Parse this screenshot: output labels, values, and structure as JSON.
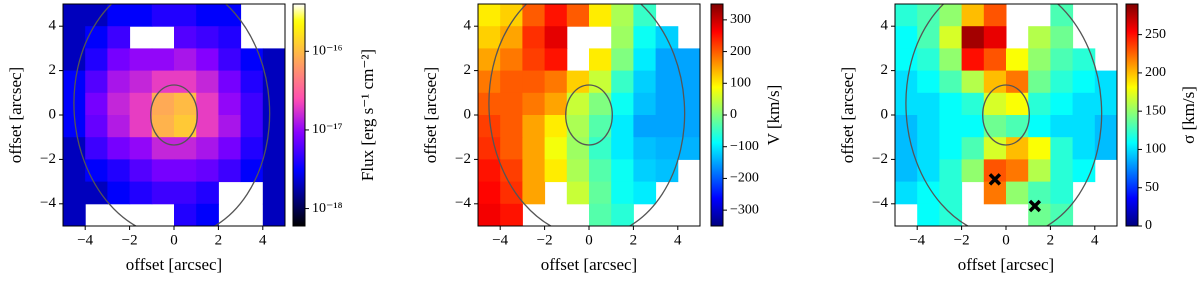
{
  "chart_data": [
    {
      "type": "heatmap",
      "xlabel": "offset [arcsec]",
      "ylabel": "offset [arcsec]",
      "xlim": [
        -5,
        5
      ],
      "ylim": [
        -5,
        5
      ],
      "xticks": [
        {
          "value": -4,
          "label": "−4"
        },
        {
          "value": -2,
          "label": "−2"
        },
        0,
        2,
        4
      ],
      "yticks": [
        {
          "value": -4,
          "label": "−4"
        },
        {
          "value": -2,
          "label": "−2"
        },
        0,
        2,
        4
      ],
      "x": [
        -4.5,
        -3.5,
        -2.5,
        -1.5,
        -0.5,
        0.5,
        1.5,
        2.5,
        3.5,
        4.5
      ],
      "y": [
        4.5,
        3.5,
        2.5,
        1.5,
        0.5,
        -0.5,
        -1.5,
        -2.5,
        -3.5,
        -4.5
      ],
      "values": [
        [
          2e-18,
          2e-18,
          3e-18,
          3e-18,
          4e-18,
          4e-18,
          3e-18,
          3e-18,
          null,
          null
        ],
        [
          2e-18,
          3e-18,
          5e-18,
          null,
          null,
          6e-18,
          5e-18,
          4e-18,
          null,
          null
        ],
        [
          2e-18,
          4e-18,
          8e-18,
          1e-17,
          1e-17,
          1.2e-17,
          9e-18,
          5e-18,
          3e-18,
          2e-18
        ],
        [
          3e-18,
          6e-18,
          1.2e-17,
          1.5e-17,
          2e-17,
          2e-17,
          1.5e-17,
          8e-18,
          4e-18,
          2e-18
        ],
        [
          3e-18,
          8e-18,
          1.5e-17,
          2e-17,
          8e-17,
          1e-16,
          2e-17,
          1e-17,
          5e-18,
          2e-18
        ],
        [
          3e-18,
          7e-18,
          1.3e-17,
          2e-17,
          9e-17,
          1.2e-16,
          2e-17,
          1.2e-17,
          5e-18,
          2e-18
        ],
        [
          2e-18,
          5e-18,
          8e-18,
          1e-17,
          1.5e-17,
          1.5e-17,
          1.2e-17,
          8e-18,
          4e-18,
          2e-18
        ],
        [
          2e-18,
          3e-18,
          4e-18,
          6e-18,
          8e-18,
          8e-18,
          7e-18,
          5e-18,
          3e-18,
          2e-18
        ],
        [
          2e-18,
          2e-18,
          3e-18,
          4e-18,
          5e-18,
          5e-18,
          4e-18,
          null,
          null,
          2e-18
        ],
        [
          2e-18,
          null,
          null,
          null,
          null,
          4e-18,
          3e-18,
          null,
          null,
          2e-18
        ]
      ],
      "colorbar": {
        "label": "Flux [erg s⁻¹ cm⁻²]",
        "scale": "log",
        "colormap": "gnuplot2",
        "lim": [
          6e-19,
          4e-16
        ],
        "ticks": [
          {
            "value": 1e-18,
            "label": "10⁻¹⁸"
          },
          {
            "value": 1e-17,
            "label": "10⁻¹⁷"
          },
          {
            "value": 1e-16,
            "label": "10⁻¹⁶"
          }
        ]
      }
    },
    {
      "type": "heatmap",
      "xlabel": "offset [arcsec]",
      "ylabel": "offset [arcsec]",
      "xlim": [
        -5,
        5
      ],
      "ylim": [
        -5,
        5
      ],
      "xticks": [
        {
          "value": -4,
          "label": "−4"
        },
        {
          "value": -2,
          "label": "−2"
        },
        0,
        2,
        4
      ],
      "yticks": [
        {
          "value": -4,
          "label": "−4"
        },
        {
          "value": -2,
          "label": "−2"
        },
        0,
        2,
        4
      ],
      "x": [
        -4.5,
        -3.5,
        -2.5,
        -1.5,
        -0.5,
        0.5,
        1.5,
        2.5,
        3.5,
        4.5
      ],
      "y": [
        4.5,
        3.5,
        2.5,
        1.5,
        0.5,
        -0.5,
        -1.5,
        -2.5,
        -3.5,
        -4.5
      ],
      "values": [
        [
          100,
          120,
          200,
          250,
          200,
          100,
          30,
          -50,
          null,
          null
        ],
        [
          120,
          150,
          230,
          280,
          null,
          null,
          20,
          -80,
          -120,
          null
        ],
        [
          150,
          180,
          220,
          250,
          null,
          100,
          0,
          -100,
          -150,
          -150
        ],
        [
          180,
          200,
          200,
          180,
          120,
          50,
          -50,
          -120,
          -150,
          -150
        ],
        [
          200,
          200,
          180,
          150,
          50,
          0,
          -80,
          -130,
          -150,
          -150
        ],
        [
          220,
          200,
          150,
          100,
          30,
          -30,
          -100,
          -150,
          -150,
          -150
        ],
        [
          230,
          200,
          150,
          80,
          20,
          -50,
          -100,
          -130,
          -140,
          -140
        ],
        [
          250,
          220,
          150,
          100,
          30,
          -30,
          -80,
          -120,
          -130,
          null
        ],
        [
          260,
          230,
          150,
          null,
          50,
          -20,
          -80,
          -100,
          null,
          null
        ],
        [
          270,
          250,
          null,
          null,
          null,
          -30,
          -60,
          null,
          null,
          null
        ]
      ],
      "colorbar": {
        "label": "V [km/s]",
        "scale": "linear",
        "colormap": "jet",
        "lim": [
          -350,
          350
        ],
        "ticks": [
          {
            "value": -300,
            "label": "−300"
          },
          {
            "value": -200,
            "label": "−200"
          },
          {
            "value": -100,
            "label": "−100"
          },
          0,
          100,
          200,
          300
        ]
      }
    },
    {
      "type": "heatmap",
      "xlabel": "offset [arcsec]",
      "ylabel": "offset [arcsec]",
      "xlim": [
        -5,
        5
      ],
      "ylim": [
        -5,
        5
      ],
      "xticks": [
        {
          "value": -4,
          "label": "−4"
        },
        {
          "value": -2,
          "label": "−2"
        },
        0,
        2,
        4
      ],
      "yticks": [
        {
          "value": -4,
          "label": "−4"
        },
        {
          "value": -2,
          "label": "−2"
        },
        0,
        2,
        4
      ],
      "x": [
        -4.5,
        -3.5,
        -2.5,
        -1.5,
        -0.5,
        0.5,
        1.5,
        2.5,
        3.5,
        4.5
      ],
      "y": [
        4.5,
        3.5,
        2.5,
        1.5,
        0.5,
        -0.5,
        -1.5,
        -2.5,
        -3.5,
        -4.5
      ],
      "values": [
        [
          120,
          130,
          150,
          200,
          230,
          null,
          null,
          130,
          null,
          null
        ],
        [
          110,
          130,
          170,
          280,
          260,
          null,
          160,
          140,
          null,
          null
        ],
        [
          110,
          120,
          150,
          250,
          230,
          180,
          150,
          130,
          120,
          null
        ],
        [
          100,
          110,
          130,
          160,
          200,
          220,
          140,
          120,
          110,
          100
        ],
        [
          100,
          100,
          110,
          120,
          170,
          180,
          120,
          110,
          100,
          100
        ],
        [
          90,
          100,
          110,
          110,
          140,
          130,
          110,
          100,
          100,
          90
        ],
        [
          90,
          100,
          110,
          130,
          170,
          200,
          180,
          120,
          100,
          90
        ],
        [
          90,
          100,
          120,
          150,
          230,
          220,
          160,
          120,
          110,
          null
        ],
        [
          100,
          110,
          120,
          null,
          220,
          150,
          130,
          120,
          null,
          null
        ],
        [
          null,
          110,
          120,
          null,
          null,
          null,
          140,
          130,
          null,
          null
        ]
      ],
      "markers": {
        "x": [
          -0.5,
          1.3
        ],
        "y": [
          -2.9,
          -4.1
        ],
        "color": "#000000"
      },
      "colorbar": {
        "label": "σ [km/s]",
        "scale": "linear",
        "colormap": "jet",
        "lim": [
          0,
          290
        ],
        "ticks": [
          0,
          50,
          100,
          150,
          200,
          250
        ]
      }
    }
  ]
}
